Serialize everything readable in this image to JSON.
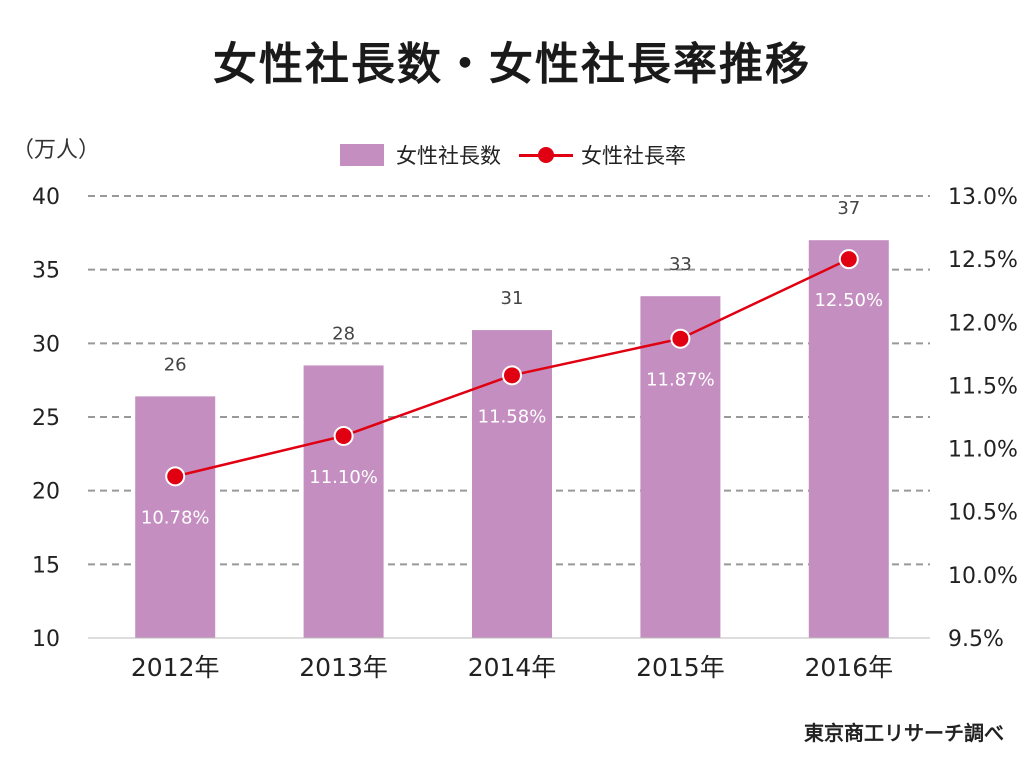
{
  "chart_data": {
    "type": "bar",
    "title": "女性社長数・女性社長率推移",
    "left_unit": "（万人）",
    "source": "東京商工リサーチ調べ",
    "categories": [
      "2012年",
      "2013年",
      "2014年",
      "2015年",
      "2016年"
    ],
    "series": [
      {
        "name": "女性社長数",
        "type": "bar",
        "axis": "left",
        "color": "#c48fc0",
        "values": [
          26.4,
          28.5,
          30.9,
          33.2,
          37.0
        ],
        "labels": [
          "26",
          "28",
          "31",
          "33",
          "37"
        ]
      },
      {
        "name": "女性社長率",
        "type": "line",
        "axis": "right",
        "color": "#e00012",
        "values": [
          10.78,
          11.1,
          11.58,
          11.87,
          12.5
        ],
        "labels": [
          "10.78%",
          "11.10%",
          "11.58%",
          "11.87%",
          "12.50%"
        ]
      }
    ],
    "y_left": {
      "range": [
        10,
        40
      ],
      "ticks": [
        "10",
        "15",
        "20",
        "25",
        "30",
        "35",
        "40"
      ]
    },
    "y_right": {
      "range": [
        9.5,
        13.0
      ],
      "ticks": [
        "9.5%",
        "10.0%",
        "10.5%",
        "11.0%",
        "11.5%",
        "12.0%",
        "12.5%",
        "13.0%"
      ]
    },
    "grid": "dashed horizontal",
    "legend": "top-center"
  }
}
